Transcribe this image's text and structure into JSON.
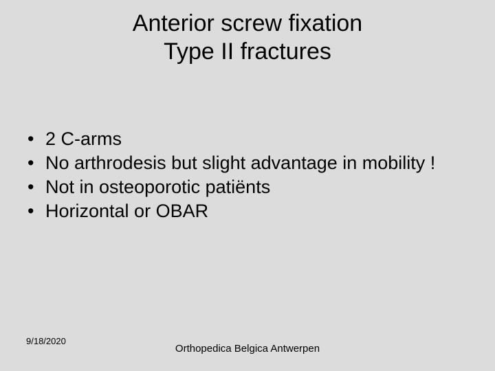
{
  "slide": {
    "background_color": "#dcdcdc",
    "text_color": "#000000",
    "title": {
      "line1": "Anterior screw fixation",
      "line2": "Type II fractures",
      "font_size": 34,
      "align": "center"
    },
    "bullets": {
      "font_size": 27,
      "items": [
        "2 C-arms",
        "No arthrodesis but slight advantage in mobility !",
        "Not in osteoporotic patiënts",
        "Horizontal or OBAR"
      ]
    },
    "footer": {
      "date": "9/18/2020",
      "center": "Orthopedica Belgica Antwerpen",
      "date_font_size": 13,
      "center_font_size": 15
    }
  }
}
